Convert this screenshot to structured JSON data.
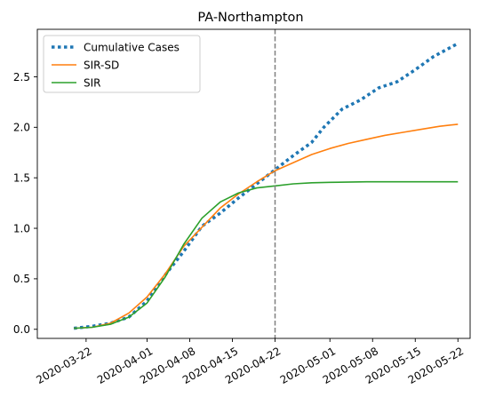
{
  "chart_data": {
    "type": "line",
    "title": "PA-Northampton",
    "xlabel": "",
    "ylabel": "",
    "x_ticks": [
      "2020-03-22",
      "2020-04-01",
      "2020-04-08",
      "2020-04-15",
      "2020-04-22",
      "2020-05-01",
      "2020-05-08",
      "2020-05-15",
      "2020-05-22"
    ],
    "y_ticks": [
      "0.0",
      "0.5",
      "1.0",
      "1.5",
      "2.0",
      "2.5"
    ],
    "xlim": [
      "2020-03-14",
      "2020-05-24"
    ],
    "ylim": [
      -0.09,
      2.97
    ],
    "grid": false,
    "legend_position": "top-left",
    "vline": {
      "x": "2020-04-22",
      "style": "dashed",
      "color": "#7f7f7f"
    },
    "series": [
      {
        "name": "Cumulative Cases",
        "style": "dotted",
        "color": "#1f77b4",
        "points": [
          [
            "2020-03-20",
            0.01
          ],
          [
            "2020-03-23",
            0.03
          ],
          [
            "2020-03-26",
            0.06
          ],
          [
            "2020-03-29",
            0.12
          ],
          [
            "2020-04-01",
            0.28
          ],
          [
            "2020-04-04",
            0.54
          ],
          [
            "2020-04-07",
            0.77
          ],
          [
            "2020-04-10",
            1.02
          ],
          [
            "2020-04-13",
            1.15
          ],
          [
            "2020-04-16",
            1.3
          ],
          [
            "2020-04-19",
            1.44
          ],
          [
            "2020-04-22",
            1.58
          ],
          [
            "2020-04-25",
            1.72
          ],
          [
            "2020-04-28",
            1.85
          ],
          [
            "2020-04-30",
            2.0
          ],
          [
            "2020-05-01",
            2.06
          ],
          [
            "2020-05-03",
            2.18
          ],
          [
            "2020-05-06",
            2.27
          ],
          [
            "2020-05-09",
            2.39
          ],
          [
            "2020-05-12",
            2.45
          ],
          [
            "2020-05-15",
            2.57
          ],
          [
            "2020-05-18",
            2.7
          ],
          [
            "2020-05-22",
            2.83
          ]
        ]
      },
      {
        "name": "SIR-SD",
        "style": "solid",
        "color": "#ff7f0e",
        "points": [
          [
            "2020-03-20",
            0.01
          ],
          [
            "2020-03-23",
            0.02
          ],
          [
            "2020-03-26",
            0.06
          ],
          [
            "2020-03-29",
            0.16
          ],
          [
            "2020-04-01",
            0.32
          ],
          [
            "2020-04-04",
            0.55
          ],
          [
            "2020-04-07",
            0.82
          ],
          [
            "2020-04-10",
            1.01
          ],
          [
            "2020-04-13",
            1.2
          ],
          [
            "2020-04-16",
            1.34
          ],
          [
            "2020-04-19",
            1.46
          ],
          [
            "2020-04-22",
            1.57
          ],
          [
            "2020-04-25",
            1.65
          ],
          [
            "2020-04-28",
            1.73
          ],
          [
            "2020-05-01",
            1.79
          ],
          [
            "2020-05-04",
            1.84
          ],
          [
            "2020-05-07",
            1.88
          ],
          [
            "2020-05-10",
            1.92
          ],
          [
            "2020-05-13",
            1.95
          ],
          [
            "2020-05-16",
            1.98
          ],
          [
            "2020-05-19",
            2.01
          ],
          [
            "2020-05-22",
            2.03
          ]
        ]
      },
      {
        "name": "SIR",
        "style": "solid",
        "color": "#2ca02c",
        "points": [
          [
            "2020-03-20",
            0.01
          ],
          [
            "2020-03-23",
            0.02
          ],
          [
            "2020-03-26",
            0.05
          ],
          [
            "2020-03-29",
            0.12
          ],
          [
            "2020-04-01",
            0.26
          ],
          [
            "2020-04-04",
            0.52
          ],
          [
            "2020-04-07",
            0.84
          ],
          [
            "2020-04-10",
            1.1
          ],
          [
            "2020-04-13",
            1.26
          ],
          [
            "2020-04-16",
            1.35
          ],
          [
            "2020-04-19",
            1.4
          ],
          [
            "2020-04-22",
            1.42
          ],
          [
            "2020-04-25",
            1.44
          ],
          [
            "2020-04-28",
            1.45
          ],
          [
            "2020-05-01",
            1.455
          ],
          [
            "2020-05-07",
            1.46
          ],
          [
            "2020-05-14",
            1.46
          ],
          [
            "2020-05-22",
            1.46
          ]
        ]
      }
    ]
  }
}
